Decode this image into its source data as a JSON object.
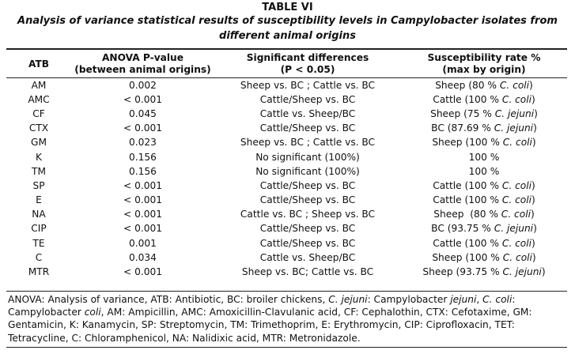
{
  "title": "TABLE VI",
  "subtitle": "Analysis of variance statistical results of susceptibility levels in Campylobacter isolates from different animal origins",
  "headers": {
    "atb": "ATB",
    "anova": "ANOVA P-value\n(between animal origins)",
    "sig": "Significant differences\n(P < 0.05)",
    "rate": "Susceptibility rate %\n(max by origin)"
  },
  "rows": [
    {
      "atb": "AM",
      "p": "0.002",
      "sig": "Sheep vs. BC ; Cattle vs. BC",
      "rate_pre": "Sheep (80 % ",
      "rate_species": "C. coli",
      "rate_post": ")"
    },
    {
      "atb": "AMC",
      "p": "< 0.001",
      "sig": "Cattle/Sheep vs. BC",
      "rate_pre": "Cattle (100 % ",
      "rate_species": "C. coli",
      "rate_post": ")"
    },
    {
      "atb": "CF",
      "p": "0.045",
      "sig": "Cattle vs. Sheep/BC",
      "rate_pre": "Sheep (75 % ",
      "rate_species": "C. jejuni",
      "rate_post": ")"
    },
    {
      "atb": "CTX",
      "p": "< 0.001",
      "sig": "Cattle/Sheep vs. BC",
      "rate_pre": "BC (87.69 % ",
      "rate_species": "C. jejuni",
      "rate_post": ")"
    },
    {
      "atb": "GM",
      "p": "0.023",
      "sig": "Sheep vs. BC ; Cattle vs. BC",
      "rate_pre": "Sheep (100 % ",
      "rate_species": "C. coli",
      "rate_post": ")"
    },
    {
      "atb": "K",
      "p": "0.156",
      "sig": "No significant (100%)",
      "rate_pre": "100 %",
      "rate_species": "",
      "rate_post": ""
    },
    {
      "atb": "TM",
      "p": "0.156",
      "sig": "No significant (100%)",
      "rate_pre": "100 %",
      "rate_species": "",
      "rate_post": ""
    },
    {
      "atb": "SP",
      "p": "< 0.001",
      "sig": "Cattle/Sheep vs. BC",
      "rate_pre": "Cattle (100 % ",
      "rate_species": "C. coli",
      "rate_post": ")"
    },
    {
      "atb": "E",
      "p": "< 0.001",
      "sig": "Cattle/Sheep vs. BC",
      "rate_pre": "Cattle (100 % ",
      "rate_species": "C. coli",
      "rate_post": ")"
    },
    {
      "atb": "NA",
      "p": "< 0.001",
      "sig": "Cattle vs. BC ; Sheep vs. BC",
      "rate_pre": "Sheep  (80 % ",
      "rate_species": "C. coli",
      "rate_post": ")"
    },
    {
      "atb": "CIP",
      "p": "< 0.001",
      "sig": "Cattle/Sheep vs. BC",
      "rate_pre": "BC (93.75 % ",
      "rate_species": "C. jejuni",
      "rate_post": ")"
    },
    {
      "atb": "TE",
      "p": "0.001",
      "sig": "Cattle/Sheep vs. BC",
      "rate_pre": "Cattle (100 % ",
      "rate_species": "C. coli",
      "rate_post": ")"
    },
    {
      "atb": "C",
      "p": "0.034",
      "sig": "Cattle vs. Sheep/BC",
      "rate_pre": "Sheep (100 % ",
      "rate_species": "C. coli",
      "rate_post": ")"
    },
    {
      "atb": "MTR",
      "p": "< 0.001",
      "sig": "Sheep vs. BC; Cattle vs. BC",
      "rate_pre": "Sheep (93.75 % ",
      "rate_species": "C. jejuni",
      "rate_post": ")"
    }
  ],
  "footnote": [
    {
      "text": "ANOVA: Analysis of variance, ATB: Antibiotic, BC: broiler chickens, ",
      "italic": false
    },
    {
      "text": "C. jejuni",
      "italic": true
    },
    {
      "text": ": Campylobacter ",
      "italic": false
    },
    {
      "text": "jejuni",
      "italic": true
    },
    {
      "text": ", ",
      "italic": false
    },
    {
      "text": "C. coli",
      "italic": true
    },
    {
      "text": ": Campylobacter ",
      "italic": false
    },
    {
      "text": "coli",
      "italic": true
    },
    {
      "text": ", AM: Ampicillin, AMC: Amoxicillin-Clavulanic acid, CF: Cephalothin, CTX: Cefotaxime, GM: Gentamicin, K: Kanamycin, SP: Streptomycin, TM: Trimethoprim, E: Erythromycin, CIP: Ciprofloxacin, TET: Tetracycline, C: Chloramphenicol, NA: Nalidixic acid, MTR: Metronidazole.",
      "italic": false
    }
  ]
}
